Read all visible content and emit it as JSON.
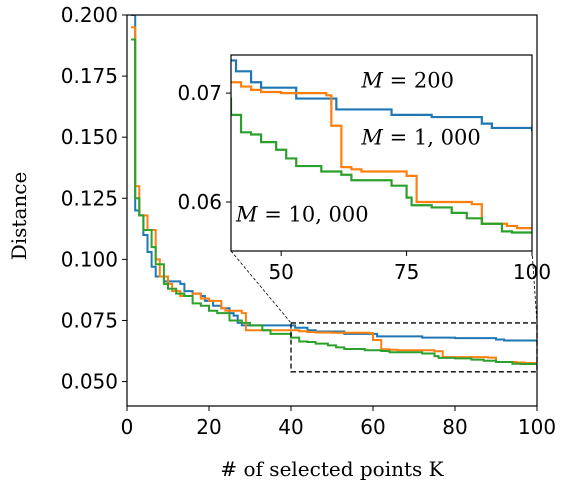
{
  "chart_data": {
    "type": "line",
    "xlabel": "# of selected points K",
    "ylabel": "Distance",
    "xlim": [
      0,
      100
    ],
    "ylim": [
      0.04,
      0.2
    ],
    "xticks": [
      "0",
      "20",
      "40",
      "60",
      "80",
      "100"
    ],
    "yticks": [
      "0.050",
      "0.075",
      "0.100",
      "0.125",
      "0.150",
      "0.175",
      "0.200"
    ],
    "grid": false,
    "legend": "none",
    "series": [
      {
        "color": "#1f77b4",
        "points": [
          [
            1,
            0.2
          ],
          [
            2,
            0.12
          ],
          [
            3,
            0.118
          ],
          [
            4,
            0.11
          ],
          [
            5,
            0.103
          ],
          [
            6,
            0.097
          ],
          [
            7,
            0.093
          ],
          [
            8,
            0.093
          ],
          [
            9,
            0.091
          ],
          [
            13,
            0.09
          ],
          [
            14,
            0.087
          ],
          [
            16,
            0.086
          ],
          [
            18,
            0.085
          ],
          [
            19,
            0.083
          ],
          [
            21,
            0.081
          ],
          [
            23,
            0.08
          ],
          [
            25,
            0.078
          ],
          [
            26,
            0.077
          ],
          [
            27,
            0.074
          ],
          [
            28,
            0.073
          ],
          [
            41,
            0.072
          ],
          [
            44,
            0.071
          ],
          [
            46,
            0.0705
          ],
          [
            53,
            0.0695
          ],
          [
            61,
            0.0685
          ],
          [
            72,
            0.068
          ],
          [
            80,
            0.0678
          ],
          [
            90,
            0.0672
          ],
          [
            92,
            0.0668
          ],
          [
            100,
            0.0665
          ]
        ]
      },
      {
        "color": "#ff7f0e",
        "points": [
          [
            1,
            0.195
          ],
          [
            2,
            0.13
          ],
          [
            3,
            0.118
          ],
          [
            5,
            0.112
          ],
          [
            7,
            0.1
          ],
          [
            8,
            0.093
          ],
          [
            10,
            0.09
          ],
          [
            11,
            0.087
          ],
          [
            13,
            0.085
          ],
          [
            16,
            0.086
          ],
          [
            18,
            0.084
          ],
          [
            20,
            0.083
          ],
          [
            23,
            0.08
          ],
          [
            24,
            0.079
          ],
          [
            28,
            0.078
          ],
          [
            29,
            0.071
          ],
          [
            40,
            0.071
          ],
          [
            42,
            0.0706
          ],
          [
            44,
            0.0703
          ],
          [
            46,
            0.0701
          ],
          [
            50,
            0.07
          ],
          [
            59,
            0.0698
          ],
          [
            60,
            0.067
          ],
          [
            62,
            0.0632
          ],
          [
            64,
            0.063
          ],
          [
            66,
            0.0628
          ],
          [
            75,
            0.0624
          ],
          [
            77,
            0.06
          ],
          [
            88,
            0.0598
          ],
          [
            90,
            0.058
          ],
          [
            95,
            0.0578
          ],
          [
            97,
            0.0576
          ],
          [
            100,
            0.0576
          ]
        ]
      },
      {
        "color": "#2ca02c",
        "points": [
          [
            1,
            0.19
          ],
          [
            2,
            0.125
          ],
          [
            3,
            0.118
          ],
          [
            4,
            0.112
          ],
          [
            6,
            0.105
          ],
          [
            7,
            0.098
          ],
          [
            9,
            0.09
          ],
          [
            10,
            0.088
          ],
          [
            12,
            0.086
          ],
          [
            14,
            0.085
          ],
          [
            16,
            0.082
          ],
          [
            18,
            0.081
          ],
          [
            20,
            0.079
          ],
          [
            22,
            0.078
          ],
          [
            25,
            0.075
          ],
          [
            28,
            0.074
          ],
          [
            30,
            0.073
          ],
          [
            33,
            0.071
          ],
          [
            35,
            0.0695
          ],
          [
            40,
            0.068
          ],
          [
            42,
            0.0664
          ],
          [
            44,
            0.0662
          ],
          [
            46,
            0.0655
          ],
          [
            49,
            0.0648
          ],
          [
            51,
            0.064
          ],
          [
            53,
            0.0633
          ],
          [
            58,
            0.0628
          ],
          [
            62,
            0.0625
          ],
          [
            64,
            0.062
          ],
          [
            72,
            0.0615
          ],
          [
            75,
            0.0604
          ],
          [
            76,
            0.0597
          ],
          [
            80,
            0.0595
          ],
          [
            84,
            0.059
          ],
          [
            87,
            0.0585
          ],
          [
            90,
            0.058
          ],
          [
            94,
            0.0573
          ],
          [
            96,
            0.0572
          ],
          [
            100,
            0.0572
          ]
        ]
      }
    ],
    "zoom_box": {
      "x": [
        40,
        100
      ],
      "y": [
        0.054,
        0.074
      ]
    },
    "inset": {
      "xlim": [
        40,
        100
      ],
      "ylim": [
        0.0555,
        0.0735
      ],
      "xticks": [
        "50",
        "75",
        "100"
      ],
      "yticks": [
        "0.06",
        "0.07"
      ],
      "labels": [
        {
          "var": "M",
          "eq": " = ",
          "value": "200",
          "x": 66,
          "y": 0.0705
        },
        {
          "var": "M",
          "eq": " = ",
          "value": "1, 000",
          "x": 66,
          "y": 0.0653
        },
        {
          "var": "M",
          "eq": " = ",
          "value": "10, 000",
          "x": 41,
          "y": 0.0582
        }
      ]
    }
  }
}
